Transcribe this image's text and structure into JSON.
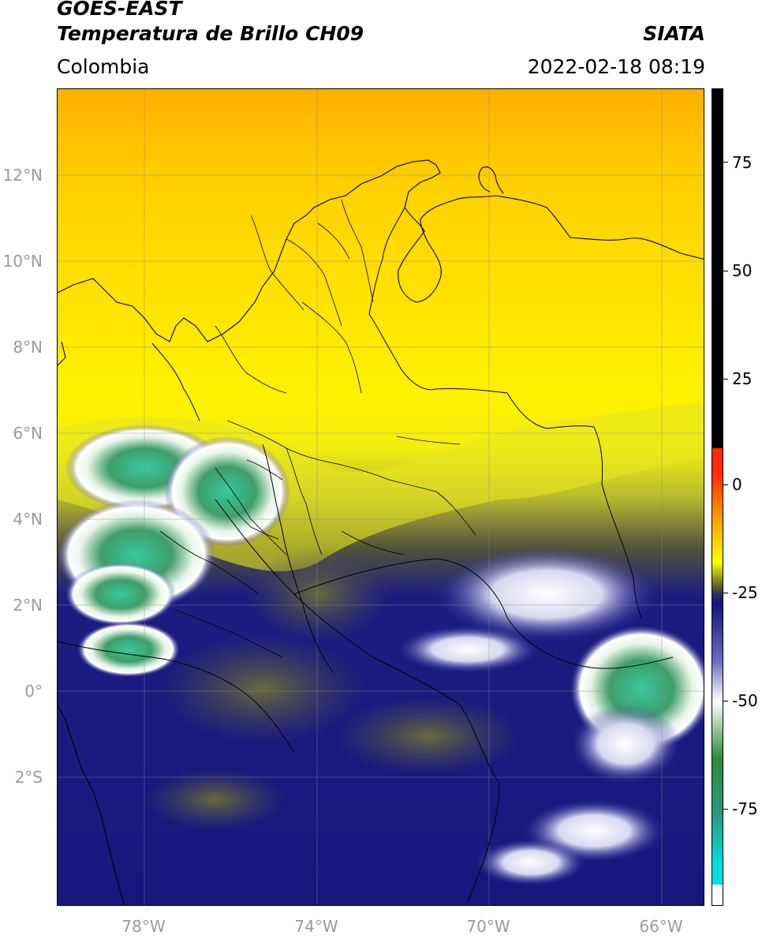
{
  "header": {
    "satellite": "GOES-EAST",
    "product": "Temperatura de Brillo CH09",
    "organization": "SIATA",
    "region": "Colombia",
    "datetime": "2022-02-18 08:19"
  },
  "map": {
    "extent": {
      "lon": [
        -80,
        -65
      ],
      "lat": [
        -5,
        14
      ]
    },
    "lat_labels": [
      "12°N",
      "10°N",
      "8°N",
      "6°N",
      "4°N",
      "2°N",
      "0°",
      "2°S"
    ],
    "lon_labels": [
      "78°W",
      "74°W",
      "70°W",
      "66°W"
    ],
    "gridlines": true,
    "features": [
      "coastlines",
      "country borders",
      "department borders"
    ]
  },
  "colorbar": {
    "range": [
      -95,
      90
    ],
    "ticks": [
      "75",
      "50",
      "25",
      "0",
      "-25",
      "-50",
      "-75"
    ],
    "colors": {
      "warm_black": "#000000",
      "red": "#ff2a00",
      "orange": "#ffa500",
      "yellow": "#ffff00",
      "olive": "#5a5a2e",
      "navy": "#14147a",
      "white": "#ffffff",
      "green": "#2e8b3a",
      "cyan": "#00e0e0"
    }
  }
}
